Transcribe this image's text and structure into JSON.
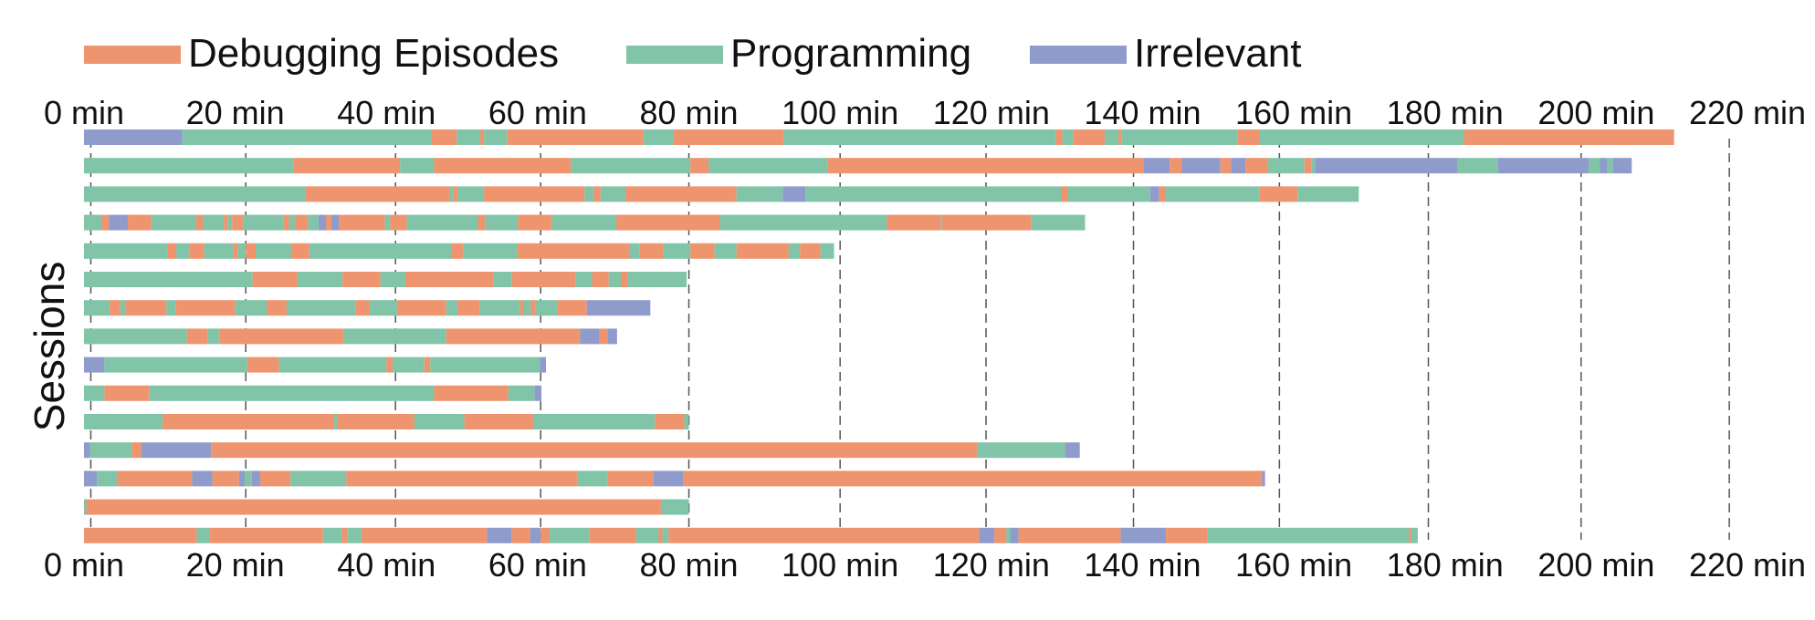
{
  "chart_data": {
    "type": "timeline",
    "ylabel": "Sessions",
    "xlim": [
      0,
      220
    ],
    "grid": "vertical-dashed",
    "legend_position": "top",
    "legend": [
      {
        "name": "Debugging Episodes",
        "color": "#EE946E"
      },
      {
        "name": "Programming",
        "color": "#82C4A7"
      },
      {
        "name": "Irrelevant",
        "color": "#8F9BCB"
      }
    ],
    "x_ticks_top": [
      {
        "value": 0,
        "label": "0 min"
      },
      {
        "value": 20,
        "label": "20 min"
      },
      {
        "value": 40,
        "label": "40 min"
      },
      {
        "value": 60,
        "label": "60 min"
      },
      {
        "value": 80,
        "label": "80 min"
      },
      {
        "value": 100,
        "label": "100 min"
      },
      {
        "value": 120,
        "label": "120 min"
      },
      {
        "value": 140,
        "label": "140 min"
      },
      {
        "value": 160,
        "label": "160 min"
      },
      {
        "value": 180,
        "label": "180 min"
      },
      {
        "value": 200,
        "label": "200 min"
      },
      {
        "value": 220,
        "label": "220 min"
      }
    ],
    "x_ticks_bottom": [
      {
        "value": 0,
        "label": "0 min"
      },
      {
        "value": 20,
        "label": "20 min"
      },
      {
        "value": 40,
        "label": "40 min"
      },
      {
        "value": 60,
        "label": "60 min"
      },
      {
        "value": 80,
        "label": "80 min"
      },
      {
        "value": 100,
        "label": "100 min"
      },
      {
        "value": 120,
        "label": "120 min"
      },
      {
        "value": 140,
        "label": "140 min"
      },
      {
        "value": 160,
        "label": "160 min"
      },
      {
        "value": 180,
        "label": "180 min"
      },
      {
        "value": 200,
        "label": "200 min"
      },
      {
        "value": 220,
        "label": "220 min"
      }
    ],
    "gridlines": [
      0.9,
      21.4,
      41.2,
      60.4,
      80,
      100,
      119.3,
      138.8,
      158.1,
      177.8,
      198,
      217.6
    ],
    "sessions": [
      [
        [
          0,
          13,
          "I"
        ],
        [
          13,
          46,
          "P"
        ],
        [
          46,
          49.3,
          "D"
        ],
        [
          49.3,
          52.4,
          "P"
        ],
        [
          52.4,
          52.9,
          "D"
        ],
        [
          52.9,
          56,
          "P"
        ],
        [
          56,
          74,
          "D"
        ],
        [
          74,
          78,
          "P"
        ],
        [
          78,
          92.5,
          "D"
        ],
        [
          92.5,
          128.5,
          "P"
        ],
        [
          128.5,
          129.4,
          "D"
        ],
        [
          129.4,
          130.8,
          "P"
        ],
        [
          130.8,
          135,
          "D"
        ],
        [
          135,
          136.8,
          "P"
        ],
        [
          136.8,
          137.2,
          "D"
        ],
        [
          137.2,
          152.6,
          "P"
        ],
        [
          152.6,
          155.4,
          "D"
        ],
        [
          155.4,
          182.5,
          "P"
        ],
        [
          182.5,
          210.3,
          "D"
        ]
      ],
      [
        [
          0,
          27.7,
          "P"
        ],
        [
          27.7,
          41.8,
          "D"
        ],
        [
          41.8,
          46.3,
          "P"
        ],
        [
          46.3,
          64.4,
          "D"
        ],
        [
          64.4,
          80.2,
          "P"
        ],
        [
          80.2,
          82.6,
          "D"
        ],
        [
          82.6,
          98.4,
          "P"
        ],
        [
          98.4,
          140.1,
          "D"
        ],
        [
          140.1,
          143.6,
          "I"
        ],
        [
          143.6,
          145.2,
          "D"
        ],
        [
          145.2,
          150.3,
          "I"
        ],
        [
          150.3,
          151.7,
          "D"
        ],
        [
          151.7,
          153.6,
          "I"
        ],
        [
          153.6,
          156.6,
          "D"
        ],
        [
          156.6,
          161.4,
          "P"
        ],
        [
          161.4,
          162.3,
          "D"
        ],
        [
          162.3,
          162.8,
          "P"
        ],
        [
          162.8,
          181.6,
          "I"
        ],
        [
          181.6,
          187,
          "P"
        ],
        [
          187,
          199,
          "I"
        ],
        [
          199,
          200.5,
          "P"
        ],
        [
          200.5,
          201.5,
          "I"
        ],
        [
          201.5,
          202.2,
          "P"
        ],
        [
          202.2,
          204.7,
          "I"
        ]
      ],
      [
        [
          0,
          29.3,
          "P"
        ],
        [
          29.3,
          48.3,
          "D"
        ],
        [
          48.3,
          48.8,
          "P"
        ],
        [
          48.8,
          49.4,
          "D"
        ],
        [
          49.4,
          52.9,
          "P"
        ],
        [
          52.9,
          66.2,
          "D"
        ],
        [
          66.2,
          67.4,
          "P"
        ],
        [
          67.4,
          68.3,
          "D"
        ],
        [
          68.3,
          71.6,
          "P"
        ],
        [
          71.6,
          86.3,
          "D"
        ],
        [
          86.3,
          92.4,
          "P"
        ],
        [
          92.4,
          95.4,
          "I"
        ],
        [
          95.4,
          129.2,
          "P"
        ],
        [
          129.2,
          130.1,
          "D"
        ],
        [
          130.1,
          141,
          "P"
        ],
        [
          141,
          142.2,
          "I"
        ],
        [
          142.2,
          143.1,
          "D"
        ],
        [
          143.1,
          155.5,
          "P"
        ],
        [
          155.5,
          160.5,
          "D"
        ],
        [
          160.5,
          168.6,
          "P"
        ]
      ],
      [
        [
          0,
          2.3,
          "P"
        ],
        [
          2.3,
          3.3,
          "D"
        ],
        [
          3.3,
          5.8,
          "I"
        ],
        [
          5.8,
          8.9,
          "D"
        ],
        [
          8.9,
          14.8,
          "P"
        ],
        [
          14.8,
          15.7,
          "D"
        ],
        [
          15.7,
          18.5,
          "P"
        ],
        [
          18.5,
          19,
          "D"
        ],
        [
          19,
          19.6,
          "P"
        ],
        [
          19.6,
          21,
          "D"
        ],
        [
          21,
          26.4,
          "P"
        ],
        [
          26.4,
          27.1,
          "D"
        ],
        [
          27.1,
          27.9,
          "P"
        ],
        [
          27.9,
          29.6,
          "D"
        ],
        [
          29.6,
          31,
          "P"
        ],
        [
          31,
          32,
          "I"
        ],
        [
          32,
          32.7,
          "D"
        ],
        [
          32.7,
          33.7,
          "I"
        ],
        [
          33.7,
          39.8,
          "D"
        ],
        [
          39.8,
          40.5,
          "P"
        ],
        [
          40.5,
          42.7,
          "D"
        ],
        [
          42.7,
          52.1,
          "P"
        ],
        [
          52.1,
          53.1,
          "D"
        ],
        [
          53.1,
          57.4,
          "P"
        ],
        [
          57.4,
          61.9,
          "D"
        ],
        [
          61.9,
          70.4,
          "P"
        ],
        [
          70.4,
          84.1,
          "D"
        ],
        [
          84.1,
          106.2,
          "P"
        ],
        [
          106.2,
          113.3,
          "D"
        ],
        [
          113.3,
          113.5,
          "P"
        ],
        [
          113.5,
          125.3,
          "D"
        ],
        [
          125.3,
          132.4,
          "P"
        ]
      ],
      [
        [
          0,
          11.1,
          "P"
        ],
        [
          11.1,
          12.2,
          "D"
        ],
        [
          12.2,
          13.9,
          "P"
        ],
        [
          13.9,
          15.9,
          "D"
        ],
        [
          15.9,
          19.7,
          "P"
        ],
        [
          19.7,
          20.3,
          "D"
        ],
        [
          20.3,
          21.4,
          "P"
        ],
        [
          21.4,
          22.7,
          "D"
        ],
        [
          22.7,
          27.4,
          "P"
        ],
        [
          27.4,
          29.8,
          "D"
        ],
        [
          29.8,
          48.6,
          "P"
        ],
        [
          48.6,
          50.2,
          "D"
        ],
        [
          50.2,
          57.3,
          "P"
        ],
        [
          57.3,
          72.2,
          "D"
        ],
        [
          72.2,
          73.5,
          "P"
        ],
        [
          73.5,
          76.6,
          "D"
        ],
        [
          76.6,
          80.2,
          "P"
        ],
        [
          80.2,
          83.4,
          "D"
        ],
        [
          83.4,
          86.3,
          "P"
        ],
        [
          86.3,
          93.2,
          "D"
        ],
        [
          93.2,
          94.7,
          "P"
        ],
        [
          94.7,
          97.4,
          "D"
        ],
        [
          97.4,
          99.2,
          "P"
        ]
      ],
      [
        [
          0,
          22.3,
          "P"
        ],
        [
          22.3,
          28.2,
          "D"
        ],
        [
          28.2,
          34.2,
          "P"
        ],
        [
          34.2,
          39.2,
          "D"
        ],
        [
          39.2,
          42.5,
          "P"
        ],
        [
          42.5,
          54.2,
          "D"
        ],
        [
          54.2,
          56.6,
          "P"
        ],
        [
          56.6,
          65,
          "D"
        ],
        [
          65,
          67.2,
          "P"
        ],
        [
          67.2,
          69.4,
          "D"
        ],
        [
          69.4,
          71,
          "P"
        ],
        [
          71,
          71.9,
          "D"
        ],
        [
          71.9,
          79.7,
          "P"
        ]
      ],
      [
        [
          0,
          3.4,
          "P"
        ],
        [
          3.4,
          4.8,
          "D"
        ],
        [
          4.8,
          5.5,
          "P"
        ],
        [
          5.5,
          10.9,
          "D"
        ],
        [
          10.9,
          12.1,
          "P"
        ],
        [
          12.1,
          20,
          "D"
        ],
        [
          20,
          24.2,
          "P"
        ],
        [
          24.2,
          26.8,
          "D"
        ],
        [
          26.8,
          35.9,
          "P"
        ],
        [
          35.9,
          37.8,
          "D"
        ],
        [
          37.8,
          41.4,
          "P"
        ],
        [
          41.4,
          47.9,
          "D"
        ],
        [
          47.9,
          49.4,
          "P"
        ],
        [
          49.4,
          52.3,
          "D"
        ],
        [
          52.3,
          57.7,
          "P"
        ],
        [
          57.7,
          58.2,
          "D"
        ],
        [
          58.2,
          59.1,
          "P"
        ],
        [
          59.1,
          59.7,
          "D"
        ],
        [
          59.7,
          62.6,
          "P"
        ],
        [
          62.6,
          66.5,
          "D"
        ],
        [
          66.5,
          74.9,
          "I"
        ]
      ],
      [
        [
          0,
          13.6,
          "P"
        ],
        [
          13.6,
          16.4,
          "D"
        ],
        [
          16.4,
          17.9,
          "P"
        ],
        [
          17.9,
          34.4,
          "D"
        ],
        [
          34.4,
          47.9,
          "P"
        ],
        [
          47.9,
          65.6,
          "D"
        ],
        [
          65.6,
          68.1,
          "I"
        ],
        [
          68.1,
          69.3,
          "D"
        ],
        [
          69.3,
          70.5,
          "I"
        ]
      ],
      [
        [
          0,
          2.7,
          "I"
        ],
        [
          2.7,
          21.6,
          "P"
        ],
        [
          21.6,
          25.8,
          "D"
        ],
        [
          25.8,
          40,
          "P"
        ],
        [
          40,
          40.8,
          "D"
        ],
        [
          40.8,
          45,
          "P"
        ],
        [
          45,
          45.8,
          "D"
        ],
        [
          45.8,
          60.3,
          "P"
        ],
        [
          60.3,
          61.1,
          "I"
        ]
      ],
      [
        [
          0,
          2.7,
          "P"
        ],
        [
          2.7,
          8.6,
          "D"
        ],
        [
          8.6,
          46.3,
          "P"
        ],
        [
          46.3,
          56.1,
          "D"
        ],
        [
          56.1,
          59.6,
          "P"
        ],
        [
          59.6,
          60.5,
          "I"
        ]
      ],
      [
        [
          0,
          10.4,
          "P"
        ],
        [
          10.4,
          33.1,
          "D"
        ],
        [
          33.1,
          33.5,
          "P"
        ],
        [
          33.5,
          43.7,
          "D"
        ],
        [
          43.7,
          50.3,
          "P"
        ],
        [
          50.3,
          59.4,
          "D"
        ],
        [
          59.4,
          75.5,
          "P"
        ],
        [
          75.5,
          79.4,
          "D"
        ],
        [
          79.4,
          80,
          "P"
        ]
      ],
      [
        [
          0,
          0.8,
          "I"
        ],
        [
          0.8,
          6.3,
          "P"
        ],
        [
          6.3,
          7.6,
          "D"
        ],
        [
          7.6,
          16.8,
          "I"
        ],
        [
          16.8,
          118.1,
          "D"
        ],
        [
          118.1,
          129.8,
          "P"
        ],
        [
          129.8,
          131.7,
          "I"
        ]
      ],
      [
        [
          0,
          1.7,
          "I"
        ],
        [
          1.7,
          4.4,
          "P"
        ],
        [
          4.4,
          14.3,
          "D"
        ],
        [
          14.3,
          17,
          "I"
        ],
        [
          17,
          20.5,
          "D"
        ],
        [
          20.5,
          21.3,
          "I"
        ],
        [
          21.3,
          22.2,
          "P"
        ],
        [
          22.2,
          23.3,
          "I"
        ],
        [
          23.3,
          27.3,
          "D"
        ],
        [
          27.3,
          34.7,
          "P"
        ],
        [
          34.7,
          65.3,
          "D"
        ],
        [
          65.3,
          69.2,
          "P"
        ],
        [
          69.2,
          75.3,
          "D"
        ],
        [
          75.3,
          79.3,
          "I"
        ],
        [
          79.3,
          155.8,
          "D"
        ],
        [
          155.8,
          156.2,
          "I"
        ]
      ],
      [
        [
          0,
          0.3,
          "P"
        ],
        [
          0.3,
          76.3,
          "D"
        ],
        [
          76.3,
          80,
          "P"
        ]
      ],
      [
        [
          0,
          14.9,
          "D"
        ],
        [
          14.9,
          16.6,
          "P"
        ],
        [
          16.6,
          31.6,
          "D"
        ],
        [
          31.6,
          34.1,
          "P"
        ],
        [
          34.1,
          34.8,
          "D"
        ],
        [
          34.8,
          36.7,
          "P"
        ],
        [
          36.7,
          53.3,
          "D"
        ],
        [
          53.3,
          56.6,
          "I"
        ],
        [
          56.6,
          59,
          "D"
        ],
        [
          59,
          60.4,
          "I"
        ],
        [
          60.4,
          61.6,
          "D"
        ],
        [
          61.6,
          66.8,
          "P"
        ],
        [
          66.8,
          73,
          "D"
        ],
        [
          73,
          76,
          "P"
        ],
        [
          76,
          76.5,
          "D"
        ],
        [
          76.5,
          77.3,
          "P"
        ],
        [
          77.3,
          118.4,
          "D"
        ],
        [
          118.4,
          120.4,
          "I"
        ],
        [
          120.4,
          122,
          "D"
        ],
        [
          122,
          122.5,
          "P"
        ],
        [
          122.5,
          123.6,
          "I"
        ],
        [
          123.6,
          137.1,
          "D"
        ],
        [
          137.1,
          143.1,
          "I"
        ],
        [
          143.1,
          148.6,
          "D"
        ],
        [
          148.6,
          175.2,
          "P"
        ],
        [
          175.2,
          175.5,
          "D"
        ],
        [
          175.5,
          176.4,
          "P"
        ]
      ]
    ]
  }
}
